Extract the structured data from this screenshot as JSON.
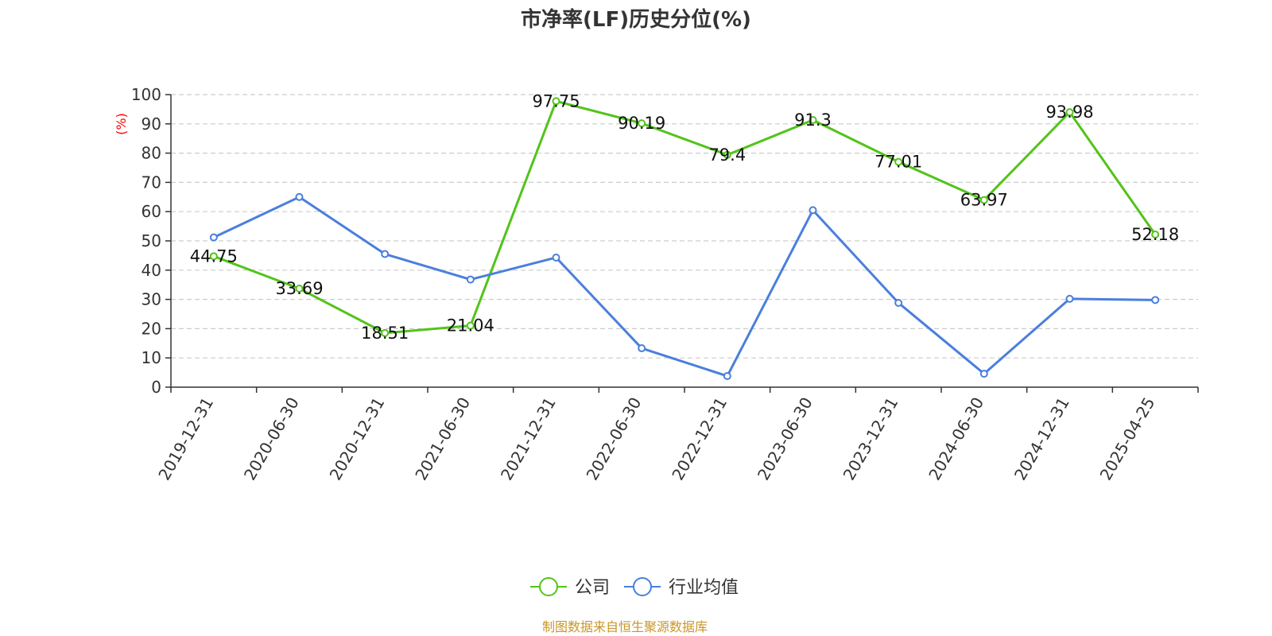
{
  "chart_data": {
    "type": "line",
    "title": "市净率(LF)历史分位(%)",
    "ylabel": "(%)",
    "ylim": [
      0,
      100
    ],
    "yticks": [
      0,
      10,
      20,
      30,
      40,
      50,
      60,
      70,
      80,
      90,
      100
    ],
    "grid": true,
    "legend_position": "bottom-center",
    "categories": [
      "2019-12-31",
      "2020-06-30",
      "2020-12-31",
      "2021-06-30",
      "2021-12-31",
      "2022-06-30",
      "2022-12-31",
      "2023-06-30",
      "2023-12-31",
      "2024-06-30",
      "2024-12-31",
      "2025-04-25"
    ],
    "series": [
      {
        "name": "公司",
        "color": "#52c41a",
        "show_labels": true,
        "values": [
          44.75,
          33.69,
          18.51,
          21.04,
          97.75,
          90.19,
          79.4,
          91.3,
          77.01,
          63.97,
          93.98,
          52.18
        ],
        "labels": [
          "44.75",
          "33.69",
          "18.51",
          "21.04",
          "97.75",
          "90.19",
          "79.4",
          "91.3",
          "77.01",
          "63.97",
          "93.98",
          "52.18"
        ]
      },
      {
        "name": "行业均值",
        "color": "#4a7fdc",
        "show_labels": false,
        "values": [
          51.2,
          65.0,
          45.5,
          36.8,
          44.3,
          13.3,
          3.8,
          60.5,
          28.8,
          4.6,
          30.2,
          29.8
        ]
      }
    ]
  },
  "source": {
    "text": "制图数据来自恒生聚源数据库",
    "color": "#c8962a"
  }
}
